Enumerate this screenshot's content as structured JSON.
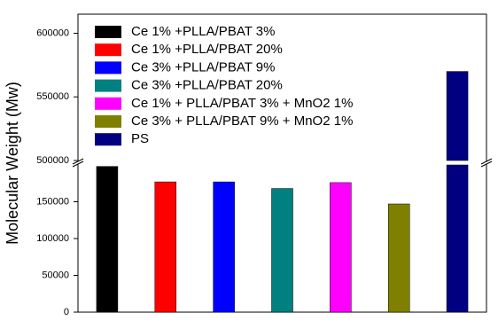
{
  "chart_data": {
    "type": "bar",
    "ylabel": "Molecular Weight (Mw)",
    "series": [
      {
        "name": "Ce 1% +PLLA/PBAT 3%",
        "color": "#000000",
        "values": [
          198000
        ]
      },
      {
        "name": "Ce 1% +PLLA/PBAT 20%",
        "color": "#ff0000",
        "values": [
          177000
        ]
      },
      {
        "name": "Ce 3% +PLLA/PBAT 9%",
        "color": "#0000ff",
        "values": [
          177000
        ]
      },
      {
        "name": "Ce 3% +PLLA/PBAT 20%",
        "color": "#008080",
        "values": [
          168000
        ]
      },
      {
        "name": "Ce 1% + PLLA/PBAT 3% + MnO2 1%",
        "color": "#ff00ff",
        "values": [
          176000
        ]
      },
      {
        "name": "Ce 3% + PLLA/PBAT 9% + MnO2 1%",
        "color": "#808000",
        "values": [
          147000
        ]
      },
      {
        "name": "PS",
        "color": "#000080",
        "values": [
          570000
        ]
      }
    ],
    "ylim": [
      0,
      615000
    ],
    "ybreak": [
      200000,
      500000
    ],
    "yticks": [
      0,
      50000,
      100000,
      150000,
      500000,
      550000,
      600000
    ],
    "legend": "upper left"
  }
}
